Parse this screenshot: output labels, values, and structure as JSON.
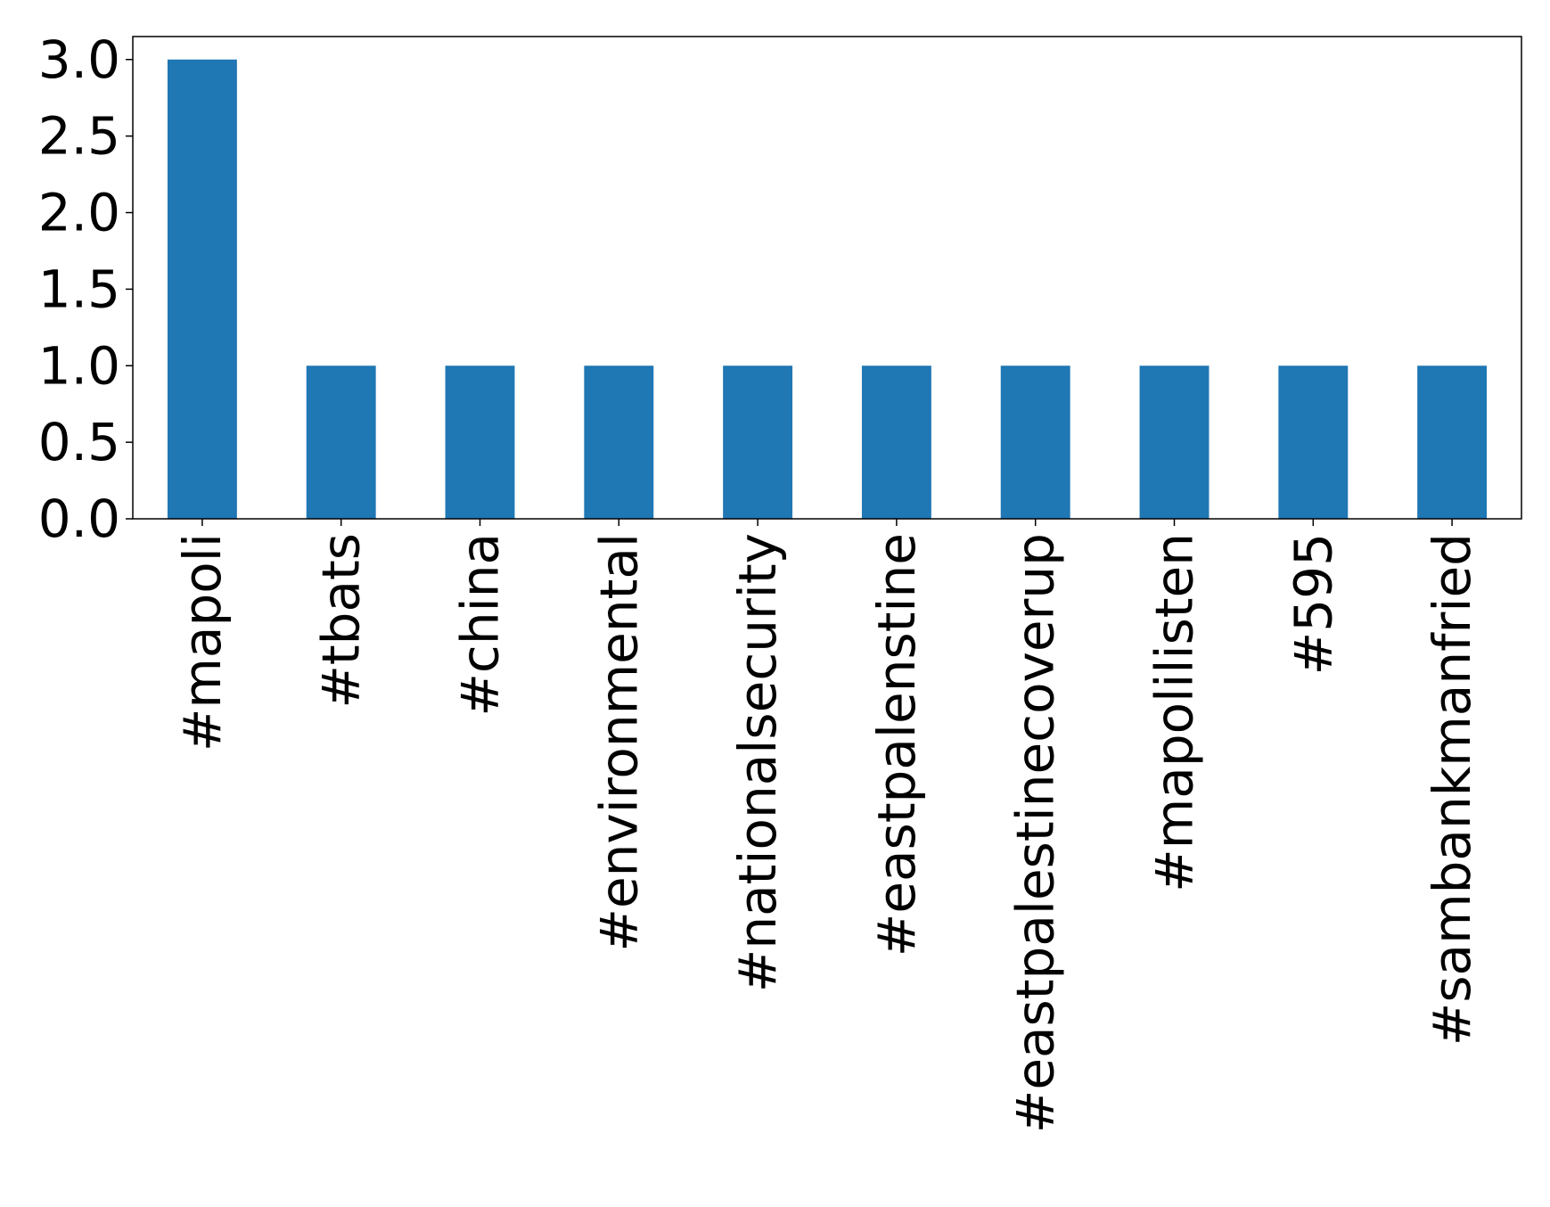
{
  "chart_data": {
    "type": "bar",
    "categories": [
      "#mapoli",
      "#tbats",
      "#china",
      "#environmental",
      "#nationalsecurity",
      "#eastpalenstine",
      "#eastpalestinecoverup",
      "#mapolilisten",
      "#595",
      "#sambankmanfried"
    ],
    "values": [
      3,
      1,
      1,
      1,
      1,
      1,
      1,
      1,
      1,
      1
    ],
    "color": "#1f77b4",
    "ylim": [
      0,
      3.15
    ],
    "yticks": [
      {
        "value": 0,
        "label": "0.0"
      },
      0.5,
      {
        "value": 1,
        "label": "1.0"
      },
      1.5,
      {
        "value": 2,
        "label": "2.0"
      },
      2.5,
      {
        "value": 3,
        "label": "3.0"
      }
    ],
    "grid": false
  }
}
